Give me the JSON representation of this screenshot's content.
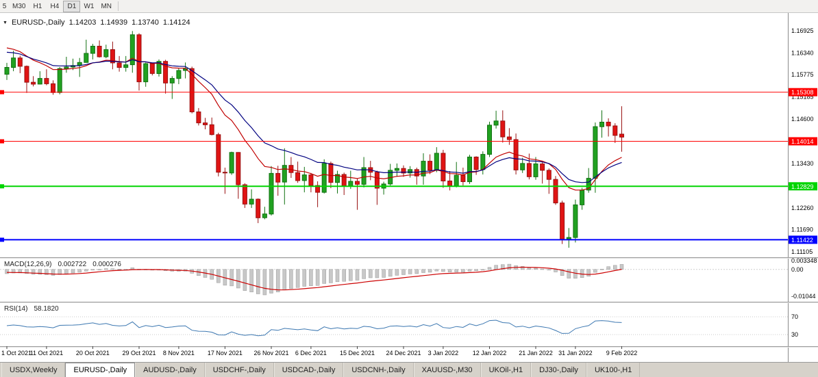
{
  "toolbar": {
    "timeframes": [
      {
        "label": "5",
        "active": false
      },
      {
        "label": "M30",
        "active": false
      },
      {
        "label": "H1",
        "active": false
      },
      {
        "label": "H4",
        "active": false
      },
      {
        "label": "D1",
        "active": true
      },
      {
        "label": "W1",
        "active": false
      },
      {
        "label": "MN",
        "active": false
      }
    ]
  },
  "chart": {
    "title": "EURUSD-,Daily",
    "ohlc": {
      "open": "1.14203",
      "high": "1.14939",
      "low": "1.13740",
      "close": "1.14124"
    },
    "price_ticks": [
      "1.16925",
      "1.16340",
      "1.15775",
      "1.15185",
      "1.14600",
      "1.13430",
      "1.12260",
      "1.11690",
      "1.11105"
    ],
    "levels": [
      {
        "price": 1.15308,
        "label": "1.15308",
        "color": "#ff0000",
        "width": 1
      },
      {
        "price": 1.14014,
        "label": "1.14014",
        "color": "#ff0000",
        "width": 1
      },
      {
        "price": 1.12829,
        "label": "1.12829",
        "color": "#00d400",
        "width": 2
      },
      {
        "price": 1.11422,
        "label": "1.11422",
        "color": "#0000ff",
        "width": 2
      }
    ]
  },
  "macd": {
    "label": "MACD(12,26,9)",
    "main_value": "0.002722",
    "signal_value": "0.000276",
    "params": {
      "fast": 12,
      "slow": 26,
      "signal": 9
    },
    "axis_ticks": [
      {
        "label": "0.003348",
        "value": 0.003348
      },
      {
        "label": "0.00",
        "value": 0
      },
      {
        "label": "-0.01044",
        "value": -0.01044
      }
    ]
  },
  "rsi": {
    "label": "RSI(14)",
    "value": "58.1820",
    "period": 14,
    "levels": [
      {
        "label": "70",
        "value": 70
      },
      {
        "label": "30",
        "value": 30
      }
    ]
  },
  "date_ticks": [
    {
      "index": 0,
      "label": "1 Oct 2021"
    },
    {
      "index": 6,
      "label": "11 Oct 2021"
    },
    {
      "index": 13,
      "label": "20 Oct 2021"
    },
    {
      "index": 20,
      "label": "29 Oct 2021"
    },
    {
      "index": 26,
      "label": "8 Nov 2021"
    },
    {
      "index": 33,
      "label": "17 Nov 2021"
    },
    {
      "index": 40,
      "label": "26 Nov 2021"
    },
    {
      "index": 46,
      "label": "6 Dec 2021"
    },
    {
      "index": 53,
      "label": "15 Dec 2021"
    },
    {
      "index": 60,
      "label": "24 Dec 2021"
    },
    {
      "index": 66,
      "label": "3 Jan 2022"
    },
    {
      "index": 73,
      "label": "12 Jan 2022"
    },
    {
      "index": 80,
      "label": "21 Jan 2022"
    },
    {
      "index": 86,
      "label": "31 Jan 2022"
    },
    {
      "index": 93,
      "label": "9 Feb 2022"
    }
  ],
  "tabs": [
    {
      "label": "USDX,Weekly",
      "active": false
    },
    {
      "label": "EURUSD-,Daily",
      "active": true
    },
    {
      "label": "AUDUSD-,Daily",
      "active": false
    },
    {
      "label": "USDCHF-,Daily",
      "active": false
    },
    {
      "label": "USDCAD-,Daily",
      "active": false
    },
    {
      "label": "USDCNH-,Daily",
      "active": false
    },
    {
      "label": "XAUUSD-,M30",
      "active": false
    },
    {
      "label": "UKOil-,H1",
      "active": false
    },
    {
      "label": "DJ30-,Daily",
      "active": false
    },
    {
      "label": "UK100-,H1",
      "active": false
    }
  ],
  "colors": {
    "up_fill": "#21a121",
    "up_stroke": "#117111",
    "down_fill": "#e01414",
    "down_stroke": "#991111",
    "macd_hist": "#c8c8c8",
    "macd_hist_stroke": "#9a9a9a",
    "macd_signal": "#cc0000",
    "rsi_line": "#3a76b0"
  },
  "chart_data": {
    "type": "candlestick",
    "symbol": "EURUSD",
    "timeframe": "Daily",
    "moving_averages": [
      {
        "name": "fast",
        "type": "ema",
        "period": 13,
        "color": "#c00000",
        "seed": 1.1656
      },
      {
        "name": "slow",
        "type": "ema",
        "period": 21,
        "color": "#000080",
        "seed": 1.164
      }
    ],
    "candles": [
      [
        1.1578,
        1.1608,
        1.1563,
        1.1596
      ],
      [
        1.1596,
        1.164,
        1.1586,
        1.1621
      ],
      [
        1.1621,
        1.1627,
        1.1581,
        1.1599
      ],
      [
        1.1599,
        1.1601,
        1.1529,
        1.1557
      ],
      [
        1.1557,
        1.1573,
        1.1546,
        1.1552
      ],
      [
        1.1552,
        1.1586,
        1.1551,
        1.1567
      ],
      [
        1.1567,
        1.1591,
        1.1549,
        1.1553
      ],
      [
        1.1553,
        1.1562,
        1.1524,
        1.153
      ],
      [
        1.153,
        1.1597,
        1.1525,
        1.1593
      ],
      [
        1.1593,
        1.1624,
        1.1582,
        1.1597
      ],
      [
        1.1597,
        1.1619,
        1.1589,
        1.1601
      ],
      [
        1.1601,
        1.1621,
        1.1571,
        1.1609
      ],
      [
        1.1609,
        1.1669,
        1.1609,
        1.1633
      ],
      [
        1.1633,
        1.1658,
        1.1617,
        1.1652
      ],
      [
        1.1652,
        1.1667,
        1.1622,
        1.1624
      ],
      [
        1.1624,
        1.1656,
        1.162,
        1.1643
      ],
      [
        1.1643,
        1.1664,
        1.1591,
        1.1608
      ],
      [
        1.1608,
        1.1626,
        1.1585,
        1.1596
      ],
      [
        1.1596,
        1.1626,
        1.1585,
        1.1603
      ],
      [
        1.1603,
        1.1692,
        1.1582,
        1.1682
      ],
      [
        1.1682,
        1.1686,
        1.1535,
        1.1558
      ],
      [
        1.1558,
        1.1609,
        1.1545,
        1.1606
      ],
      [
        1.1606,
        1.1608,
        1.1575,
        1.158
      ],
      [
        1.158,
        1.1617,
        1.1572,
        1.1612
      ],
      [
        1.1612,
        1.1616,
        1.1527,
        1.1555
      ],
      [
        1.1555,
        1.1573,
        1.1513,
        1.1567
      ],
      [
        1.1567,
        1.1594,
        1.1552,
        1.1588
      ],
      [
        1.1588,
        1.1609,
        1.1567,
        1.1593
      ],
      [
        1.1593,
        1.1598,
        1.1475,
        1.1479
      ],
      [
        1.1479,
        1.1489,
        1.1443,
        1.145
      ],
      [
        1.145,
        1.1463,
        1.1433,
        1.1445
      ],
      [
        1.1445,
        1.1464,
        1.1417,
        1.1419
      ],
      [
        1.1419,
        1.1424,
        1.1309,
        1.132
      ],
      [
        1.132,
        1.1332,
        1.1263,
        1.1318
      ],
      [
        1.1318,
        1.1374,
        1.1313,
        1.1372
      ],
      [
        1.1372,
        1.1373,
        1.125,
        1.1287
      ],
      [
        1.1287,
        1.1291,
        1.1226,
        1.1236
      ],
      [
        1.1236,
        1.1275,
        1.1226,
        1.1249
      ],
      [
        1.1249,
        1.1251,
        1.1186,
        1.12
      ],
      [
        1.12,
        1.1229,
        1.1196,
        1.121
      ],
      [
        1.121,
        1.1336,
        1.1206,
        1.1317
      ],
      [
        1.1317,
        1.1337,
        1.1258,
        1.1294
      ],
      [
        1.1294,
        1.1383,
        1.1235,
        1.1338
      ],
      [
        1.1338,
        1.136,
        1.1305,
        1.1319
      ],
      [
        1.1319,
        1.1348,
        1.1292,
        1.1298
      ],
      [
        1.1298,
        1.1334,
        1.1267,
        1.1313
      ],
      [
        1.1313,
        1.1318,
        1.1267,
        1.1285
      ],
      [
        1.1285,
        1.1296,
        1.1228,
        1.1267
      ],
      [
        1.1267,
        1.1354,
        1.1264,
        1.1343
      ],
      [
        1.1343,
        1.1348,
        1.1278,
        1.1293
      ],
      [
        1.1293,
        1.1324,
        1.1264,
        1.1314
      ],
      [
        1.1314,
        1.1319,
        1.126,
        1.1284
      ],
      [
        1.1284,
        1.1324,
        1.1276,
        1.1296
      ],
      [
        1.1296,
        1.1304,
        1.1221,
        1.1288
      ],
      [
        1.1288,
        1.136,
        1.128,
        1.1332
      ],
      [
        1.1332,
        1.135,
        1.1299,
        1.132
      ],
      [
        1.132,
        1.1324,
        1.1234,
        1.1278
      ],
      [
        1.1278,
        1.1295,
        1.1261,
        1.1289
      ],
      [
        1.1289,
        1.1342,
        1.1285,
        1.1325
      ],
      [
        1.1325,
        1.1343,
        1.1308,
        1.133
      ],
      [
        1.133,
        1.1338,
        1.1308,
        1.1318
      ],
      [
        1.1318,
        1.1336,
        1.1306,
        1.1327
      ],
      [
        1.1327,
        1.1332,
        1.1287,
        1.131
      ],
      [
        1.131,
        1.137,
        1.1287,
        1.1349
      ],
      [
        1.1349,
        1.1367,
        1.1315,
        1.1325
      ],
      [
        1.1325,
        1.1386,
        1.132,
        1.137
      ],
      [
        1.137,
        1.1379,
        1.1279,
        1.1297
      ],
      [
        1.1297,
        1.1323,
        1.1272,
        1.1284
      ],
      [
        1.1284,
        1.1347,
        1.128,
        1.1312
      ],
      [
        1.1312,
        1.1332,
        1.1285,
        1.1295
      ],
      [
        1.1295,
        1.1366,
        1.1289,
        1.136
      ],
      [
        1.136,
        1.1362,
        1.1313,
        1.1327
      ],
      [
        1.1327,
        1.1375,
        1.1314,
        1.1367
      ],
      [
        1.1367,
        1.1453,
        1.136,
        1.1444
      ],
      [
        1.1444,
        1.1482,
        1.1435,
        1.1455
      ],
      [
        1.1455,
        1.1483,
        1.1398,
        1.1413
      ],
      [
        1.1413,
        1.1436,
        1.1392,
        1.1406
      ],
      [
        1.1406,
        1.1422,
        1.1314,
        1.1326
      ],
      [
        1.1326,
        1.1358,
        1.1318,
        1.1343
      ],
      [
        1.1343,
        1.1369,
        1.1301,
        1.1308
      ],
      [
        1.1308,
        1.136,
        1.13,
        1.1342
      ],
      [
        1.1342,
        1.1346,
        1.129,
        1.1325
      ],
      [
        1.1325,
        1.133,
        1.1263,
        1.1301
      ],
      [
        1.1301,
        1.131,
        1.1234,
        1.1239
      ],
      [
        1.1239,
        1.1245,
        1.1131,
        1.1144
      ],
      [
        1.1144,
        1.1173,
        1.1121,
        1.1148
      ],
      [
        1.1148,
        1.1248,
        1.1135,
        1.1234
      ],
      [
        1.1234,
        1.1279,
        1.1221,
        1.1273
      ],
      [
        1.1273,
        1.1331,
        1.1266,
        1.1304
      ],
      [
        1.1304,
        1.1451,
        1.1266,
        1.144
      ],
      [
        1.144,
        1.1483,
        1.1411,
        1.1452
      ],
      [
        1.1452,
        1.1462,
        1.1414,
        1.1442
      ],
      [
        1.1442,
        1.1449,
        1.1397,
        1.1417
      ],
      [
        1.14203,
        1.14939,
        1.1374,
        1.14124
      ]
    ]
  }
}
